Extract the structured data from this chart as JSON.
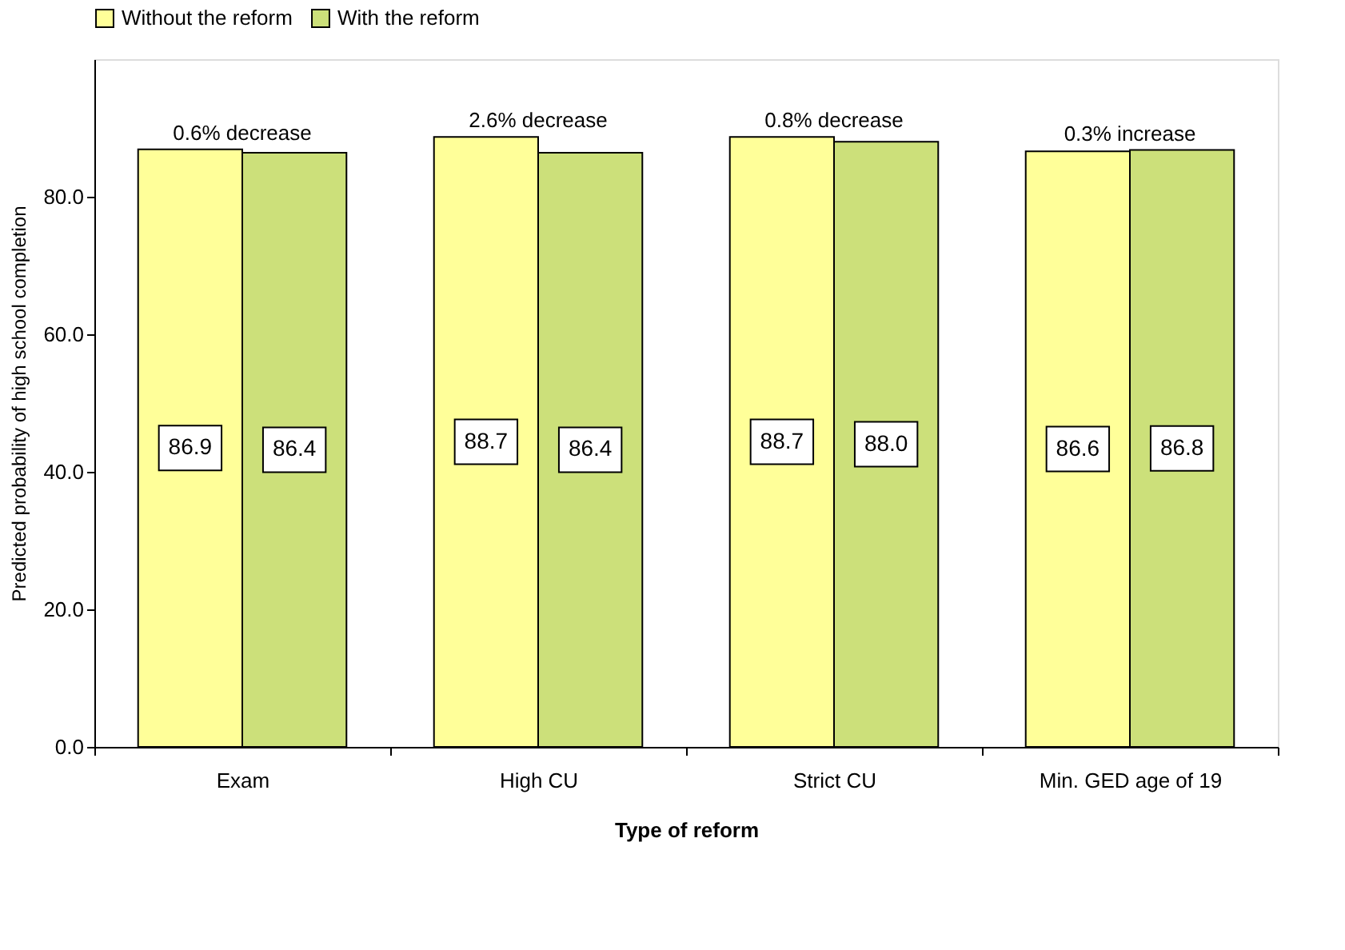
{
  "chart_data": {
    "type": "bar",
    "xlabel": "Type of reform",
    "ylabel": "Predicted probability of high school completion",
    "categories": [
      "Exam",
      "High CU",
      "Strict CU",
      "Min. GED age of 19"
    ],
    "series": [
      {
        "name": "Without the reform",
        "color": "#ffff99",
        "values": [
          86.9,
          88.7,
          88.7,
          86.6
        ],
        "value_labels": [
          "86.9",
          "88.7",
          "88.7",
          "86.6"
        ]
      },
      {
        "name": "With the reform",
        "color": "#cce07a",
        "values": [
          86.4,
          86.4,
          88.0,
          86.8
        ],
        "value_labels": [
          "86.4",
          "86.4",
          "88.0",
          "86.8"
        ]
      }
    ],
    "ylim": [
      0,
      100
    ],
    "yticks": [
      {
        "value": 0,
        "label": "0.0"
      },
      {
        "value": 20,
        "label": "20.0"
      },
      {
        "value": 40,
        "label": "40.0"
      },
      {
        "value": 60,
        "label": "60.0"
      },
      {
        "value": 80,
        "label": "80.0"
      }
    ],
    "annotations": [
      {
        "text": "0.6% decrease",
        "x": "Exam",
        "y": 86.9
      },
      {
        "text": "2.6% decrease",
        "x": "High CU",
        "y": 88.7
      },
      {
        "text": "0.8% decrease",
        "x": "Strict CU",
        "y": 88.7
      },
      {
        "text": "0.3% increase",
        "x": "Min. GED age of 19",
        "y": 86.8
      }
    ],
    "legend": "top",
    "grid": false
  }
}
